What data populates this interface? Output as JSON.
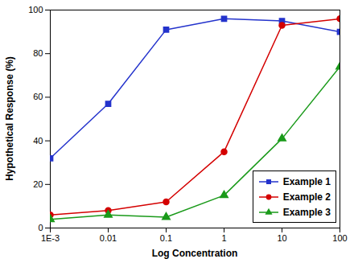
{
  "chart_data": {
    "type": "line",
    "x_label": "Log Concentration",
    "y_label": "Hypothetical Response (%)",
    "x": [
      0.001,
      0.01,
      0.1,
      1,
      10,
      100
    ],
    "series": [
      {
        "name": "Example 1",
        "color": "#2433cc",
        "marker": "square",
        "values": [
          32,
          57,
          91,
          96,
          95,
          90
        ]
      },
      {
        "name": "Example 2",
        "color": "#d40000",
        "marker": "circle",
        "values": [
          6,
          8,
          12,
          35,
          93,
          96
        ]
      },
      {
        "name": "Example 3",
        "color": "#1a9a1a",
        "marker": "triangle",
        "values": [
          4,
          6,
          5,
          15,
          41,
          74
        ]
      }
    ],
    "log": "x",
    "xlim": [
      0.001,
      100
    ],
    "xticks": [
      {
        "value": 0.001,
        "label": "1E-3"
      },
      0.01,
      0.1,
      1,
      10,
      100
    ],
    "ylim": [
      0,
      100
    ],
    "yticks": [
      0,
      20,
      40,
      60,
      80,
      100
    ],
    "grid": false,
    "legend": "lower right"
  }
}
